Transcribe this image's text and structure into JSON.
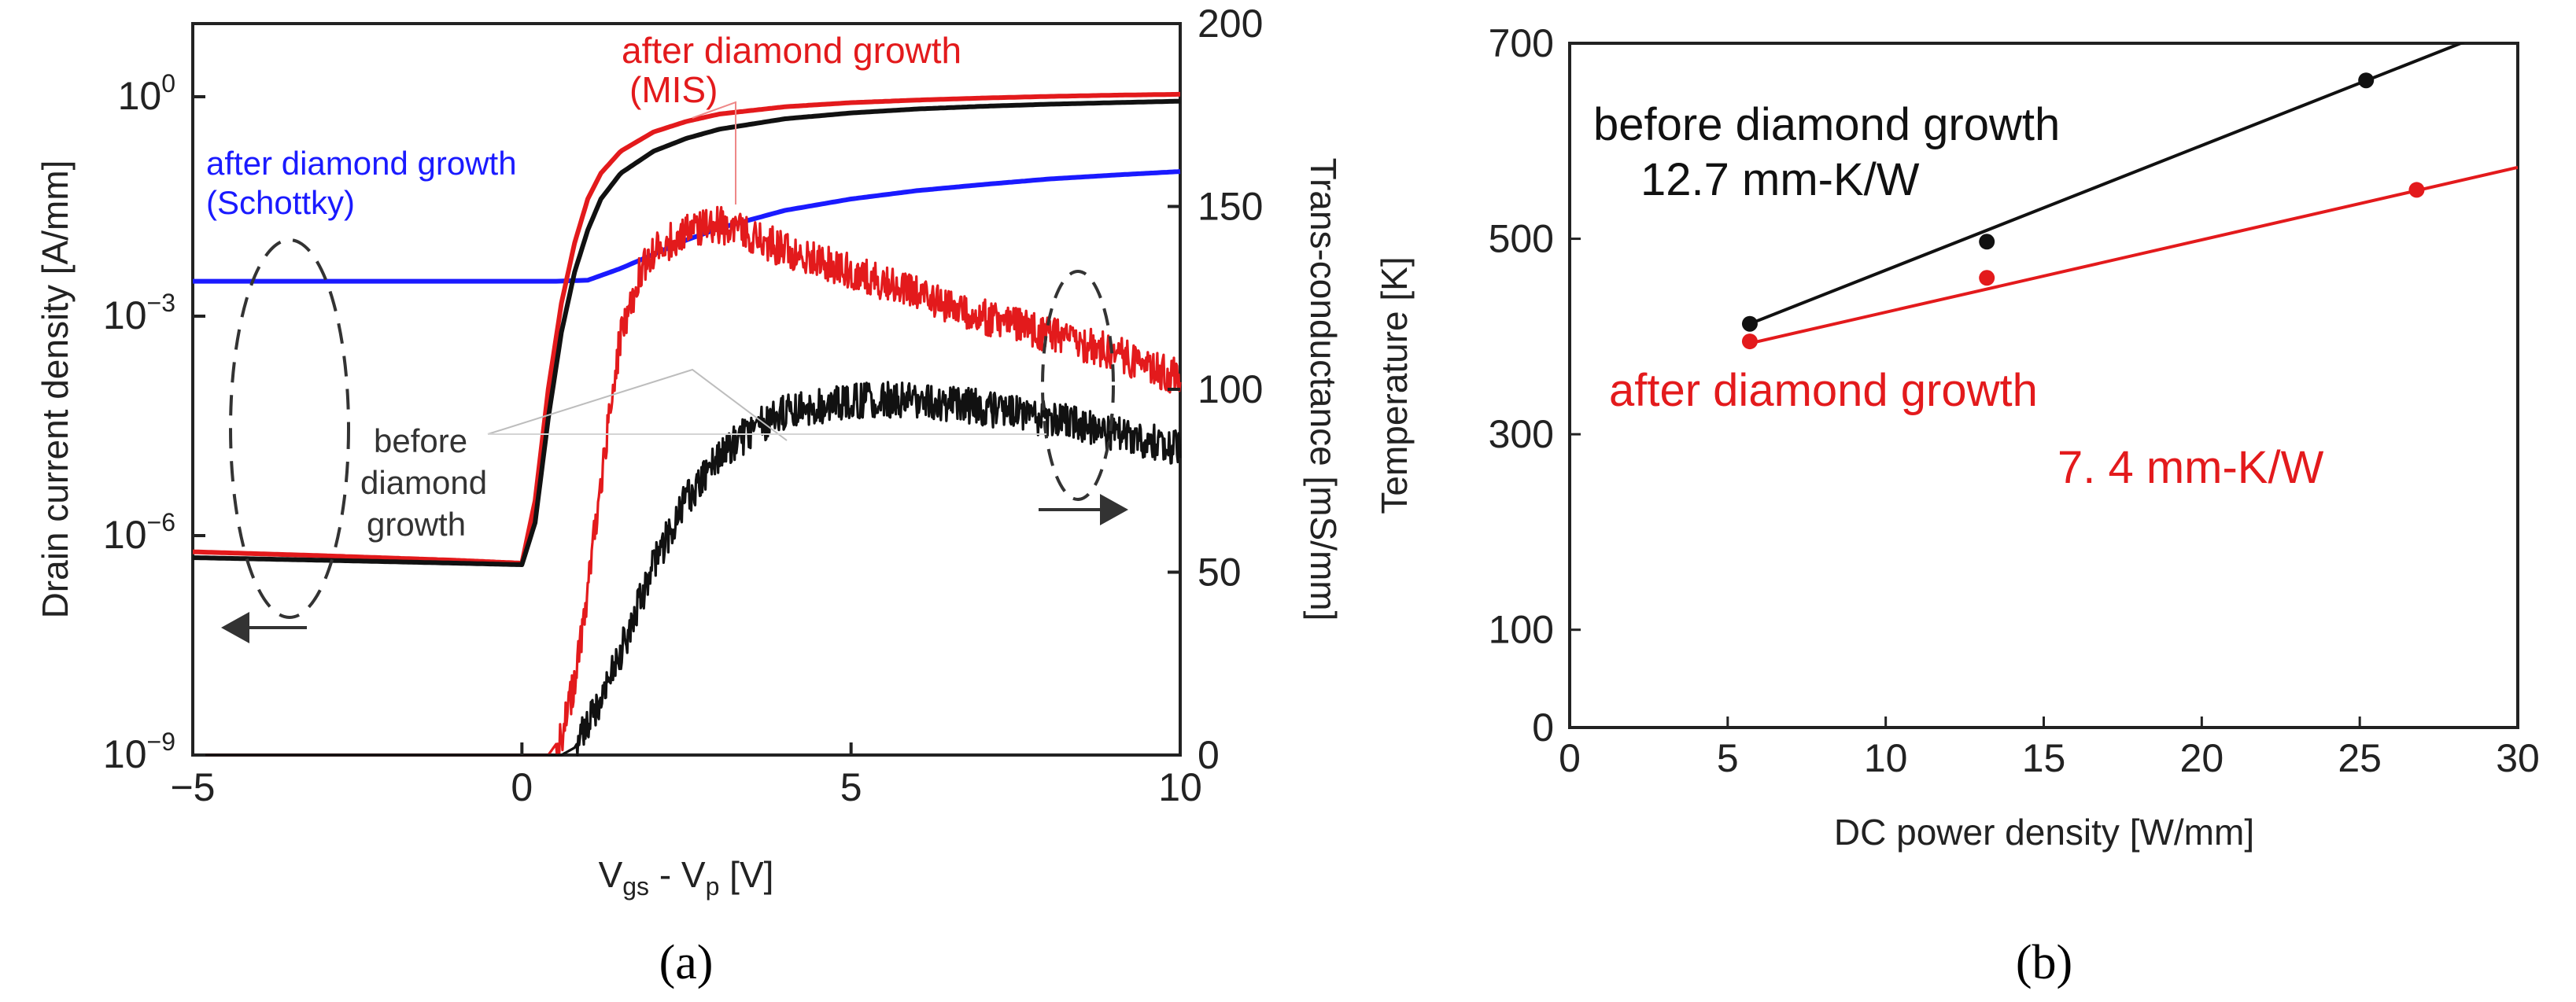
{
  "chart_data": [
    {
      "panel": "a",
      "type": "line",
      "panel_label": "(a)",
      "xlabel": "Vgs - Vp [V]",
      "xlabel_parts": {
        "v1": "V",
        "s1": "gs",
        "mid": " - V",
        "s2": "p",
        "unit": " [V]"
      },
      "ylabel_left": "Drain current density [A/mm]",
      "ylabel_right": "Trans-conductance [mS/mm]",
      "xlim": [
        -5,
        10
      ],
      "ylim_left": [
        1e-09,
        10
      ],
      "ylim_left_scale": "log",
      "ylim_right": [
        0,
        200
      ],
      "x_ticks": [
        "-5",
        "0",
        "5",
        "10"
      ],
      "y_left_ticks": [
        {
          "base": "10",
          "exp": "-9",
          "value": 1e-09
        },
        {
          "base": "10",
          "exp": "-6",
          "value": 1e-06
        },
        {
          "base": "10",
          "exp": "-3",
          "value": 0.001
        },
        {
          "base": "10",
          "exp": "0",
          "value": 1
        }
      ],
      "y_right_ticks": [
        "0",
        "50",
        "100",
        "150",
        "200"
      ],
      "series": [
        {
          "name": "after diamond growth (Schottky)",
          "axis": "left",
          "color": "#1a1aff",
          "x": [
            -5,
            -4,
            -3,
            -2,
            -1,
            0,
            0.5,
            1,
            1.5,
            2,
            2.5,
            3,
            4,
            5,
            6,
            7,
            8,
            9,
            10
          ],
          "y": [
            0.003,
            0.003,
            0.003,
            0.003,
            0.003,
            0.003,
            0.003,
            0.0031,
            0.0045,
            0.007,
            0.011,
            0.016,
            0.028,
            0.04,
            0.052,
            0.063,
            0.075,
            0.085,
            0.095
          ]
        },
        {
          "name": "after diamond growth (MIS)",
          "axis": "left",
          "color": "#e31a1c",
          "x": [
            -5,
            -3,
            -1,
            0,
            0.2,
            0.4,
            0.6,
            0.8,
            1,
            1.2,
            1.5,
            2,
            2.5,
            3,
            4,
            5,
            6,
            7,
            8,
            9,
            10
          ],
          "y": [
            6e-07,
            5.3e-07,
            4.6e-07,
            4.2e-07,
            3e-06,
            0.0001,
            0.0015,
            0.01,
            0.04,
            0.09,
            0.18,
            0.33,
            0.46,
            0.58,
            0.73,
            0.83,
            0.9,
            0.96,
            1.01,
            1.05,
            1.08
          ]
        },
        {
          "name": "before diamond growth",
          "axis": "left",
          "color": "#111111",
          "x": [
            -5,
            -3,
            -1,
            0,
            0.2,
            0.4,
            0.6,
            0.8,
            1,
            1.2,
            1.5,
            2,
            2.5,
            3,
            4,
            5,
            6,
            7,
            8,
            9,
            10
          ],
          "y": [
            5e-07,
            4.6e-07,
            4.2e-07,
            4e-07,
            1.5e-06,
            4e-05,
            0.0006,
            0.004,
            0.015,
            0.04,
            0.09,
            0.18,
            0.27,
            0.36,
            0.5,
            0.6,
            0.68,
            0.74,
            0.79,
            0.83,
            0.87
          ]
        },
        {
          "name": "after diamond growth (MIS)",
          "axis": "right",
          "color": "#e31a1c",
          "x": [
            -5,
            0,
            0.4,
            0.6,
            0.8,
            1,
            1.2,
            1.5,
            1.8,
            2,
            2.5,
            3,
            3.5,
            4,
            5,
            6,
            7,
            8,
            9,
            10
          ],
          "y": [
            0,
            0,
            0,
            5,
            20,
            45,
            75,
            115,
            132,
            138,
            143,
            145,
            142,
            138,
            132,
            126,
            120,
            115,
            110,
            103
          ]
        },
        {
          "name": "before diamond growth",
          "axis": "right",
          "color": "#111111",
          "x": [
            -5,
            0,
            0.6,
            0.8,
            1,
            1.5,
            2,
            2.5,
            3,
            3.5,
            4,
            5,
            6,
            7,
            8,
            9,
            10
          ],
          "y": [
            0,
            0,
            0,
            2,
            8,
            28,
            52,
            70,
            82,
            89,
            94,
            97,
            97,
            95,
            92,
            88,
            84
          ]
        }
      ],
      "annotations": {
        "schottky": [
          "after diamond growth",
          "(Schottky)"
        ],
        "mis": [
          "after diamond growth",
          "(MIS)"
        ],
        "before": [
          "before",
          "diamond",
          "growth"
        ]
      }
    },
    {
      "panel": "b",
      "type": "scatter",
      "panel_label": "(b)",
      "xlabel": "DC power density [W/mm]",
      "ylabel": "Temperature [K]",
      "xlim": [
        0,
        30
      ],
      "ylim": [
        0,
        700
      ],
      "x_ticks": [
        "0",
        "5",
        "10",
        "15",
        "20",
        "25",
        "30"
      ],
      "y_ticks": [
        "0",
        "100",
        "300",
        "500",
        "700"
      ],
      "series": [
        {
          "name": "before diamond growth",
          "thermal_resistance": "12.7 mm-K/W",
          "color": "#111111",
          "points": [
            [
              5.7,
              413
            ],
            [
              13.2,
              497
            ],
            [
              25.2,
              662
            ]
          ],
          "fit": [
            [
              5.7,
              413
            ],
            [
              30,
              723
            ]
          ]
        },
        {
          "name": "after diamond growth",
          "thermal_resistance": "7. 4 mm-K/W",
          "color": "#e31a1c",
          "points": [
            [
              5.7,
              395
            ],
            [
              13.2,
              460
            ],
            [
              26.8,
              550
            ]
          ],
          "fit": [
            [
              5.7,
              393
            ],
            [
              30,
              573
            ]
          ]
        }
      ]
    }
  ]
}
